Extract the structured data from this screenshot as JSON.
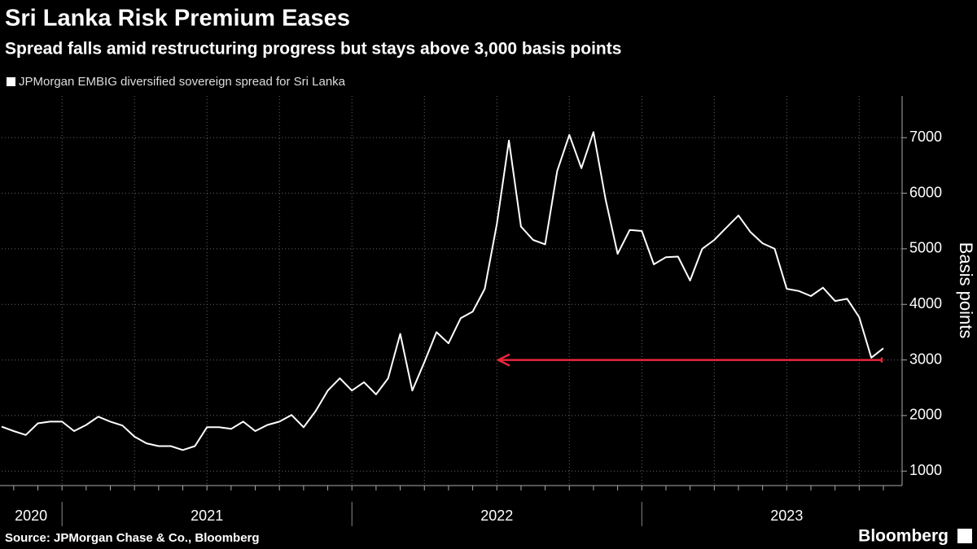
{
  "chart_data": {
    "type": "line",
    "title": "Sri Lanka Risk Premium Eases",
    "subtitle": "Spread falls amid restructuring progress but stays above 3,000 basis points",
    "y_label": "Basis points",
    "source": "Source: JPMorgan Chase & Co., Bloomberg",
    "brand": "Bloomberg",
    "categories": [
      "2020",
      null,
      null,
      null,
      null,
      "2021",
      null,
      null,
      null,
      null,
      null,
      null,
      null,
      null,
      null,
      null,
      null,
      null,
      null,
      null,
      null,
      null,
      null,
      null,
      null,
      null,
      null,
      null,
      null,
      "2022",
      null,
      null,
      null,
      null,
      null,
      null,
      null,
      null,
      null,
      null,
      null,
      null,
      null,
      null,
      null,
      null,
      null,
      null,
      null,
      null,
      null,
      null,
      null,
      "2023",
      null,
      null,
      null,
      null,
      null,
      null,
      null,
      null,
      null,
      null,
      null,
      null,
      null,
      null,
      null,
      null,
      null,
      null,
      null,
      null
    ],
    "series": [
      {
        "name": "JPMorgan EMBIG diversified sovereign spread for Sri Lanka",
        "color": "#ffffff",
        "values": [
          1800,
          1720,
          1650,
          1860,
          1890,
          1890,
          1720,
          1830,
          1980,
          1890,
          1820,
          1620,
          1500,
          1450,
          1450,
          1380,
          1450,
          1790,
          1790,
          1760,
          1890,
          1720,
          1830,
          1890,
          2010,
          1790,
          2080,
          2450,
          2670,
          2450,
          2600,
          2380,
          2670,
          3470,
          2450,
          2960,
          3500,
          3300,
          3750,
          3870,
          4280,
          5450,
          6950,
          5400,
          5160,
          5080,
          6400,
          7050,
          6450,
          7100,
          5890,
          4910,
          5340,
          5320,
          4720,
          4850,
          4860,
          4430,
          5000,
          5160,
          5380,
          5600,
          5300,
          5100,
          5000,
          4280,
          4240,
          4150,
          4300,
          4060,
          4100,
          3770,
          3040,
          3210
        ]
      }
    ],
    "reference_line": {
      "value": 3000,
      "color": "#e8273a"
    },
    "ylim": [
      740,
      7750
    ],
    "yticks": [
      1000,
      2000,
      3000,
      4000,
      5000,
      6000,
      7000
    ],
    "grid": true
  }
}
